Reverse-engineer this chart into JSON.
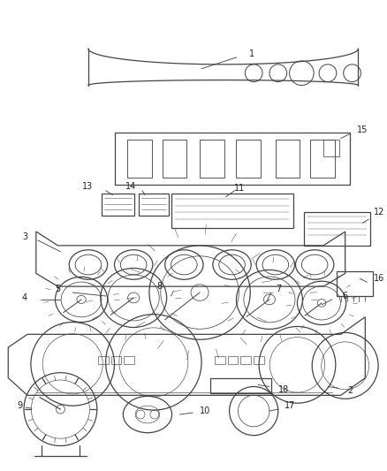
{
  "bg_color": "#ffffff",
  "line_color": "#444444",
  "text_color": "#222222",
  "fig_width": 4.38,
  "fig_height": 5.33,
  "dpi": 100
}
